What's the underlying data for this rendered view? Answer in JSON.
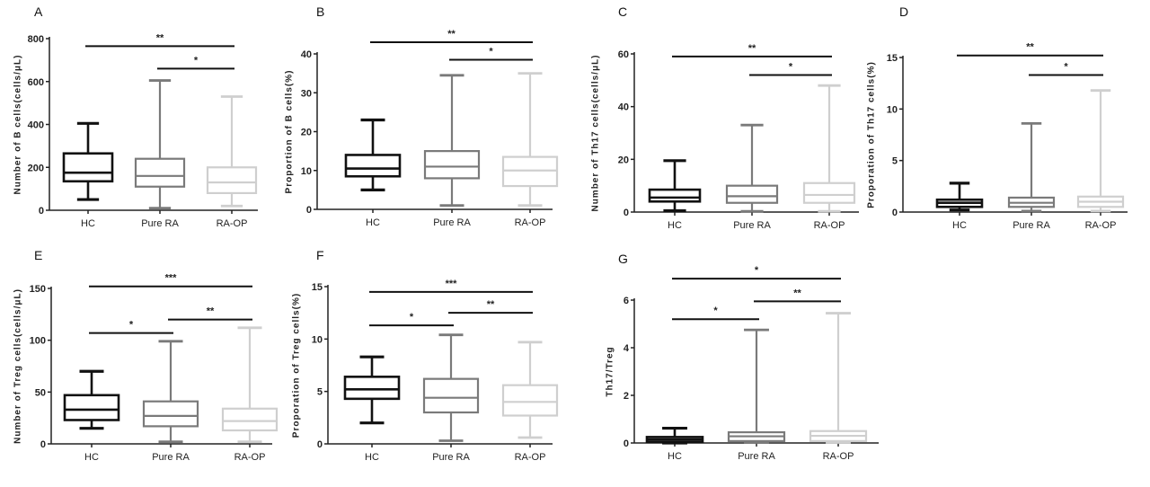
{
  "colors": {
    "HC": "#111111",
    "Pure RA": "#7a7a7a",
    "RA-OP": "#cfcfcf"
  },
  "chart_data": [
    {
      "panel": "A",
      "type": "box",
      "ylabel": "Number of B cells(cells/μL)",
      "categories": [
        "HC",
        "Pure RA",
        "RA-OP"
      ],
      "ylim": [
        0,
        800
      ],
      "yticks": [
        0,
        200,
        400,
        600,
        800
      ],
      "boxes": [
        {
          "min": 50,
          "q1": 135,
          "median": 175,
          "q3": 265,
          "max": 405
        },
        {
          "min": 10,
          "q1": 110,
          "median": 160,
          "q3": 240,
          "max": 605
        },
        {
          "min": 20,
          "q1": 80,
          "median": 130,
          "q3": 200,
          "max": 530
        }
      ],
      "significance": [
        {
          "from": "HC",
          "to": "RA-OP",
          "label": "**",
          "y": 765
        },
        {
          "from": "Pure RA",
          "to": "RA-OP",
          "label": "*",
          "y": 660
        }
      ]
    },
    {
      "panel": "B",
      "type": "box",
      "ylabel": "Proportion of B cells(%)",
      "categories": [
        "HC",
        "Pure RA",
        "RA-OP"
      ],
      "ylim": [
        0,
        40
      ],
      "yticks": [
        0,
        10,
        20,
        30,
        40
      ],
      "boxes": [
        {
          "min": 5,
          "q1": 8.5,
          "median": 10.5,
          "q3": 14,
          "max": 23
        },
        {
          "min": 1,
          "q1": 8,
          "median": 11,
          "q3": 15,
          "max": 34.5
        },
        {
          "min": 1,
          "q1": 6,
          "median": 10,
          "q3": 13.5,
          "max": 35
        }
      ],
      "significance": [
        {
          "from": "HC",
          "to": "RA-OP",
          "label": "**",
          "y": 43
        },
        {
          "from": "Pure RA",
          "to": "RA-OP",
          "label": "*",
          "y": 38.5
        }
      ]
    },
    {
      "panel": "C",
      "type": "box",
      "ylabel": "Number of Th17 cells(cells/μL)",
      "categories": [
        "HC",
        "Pure RA",
        "RA-OP"
      ],
      "ylim": [
        0,
        60
      ],
      "yticks": [
        0,
        20,
        40,
        60
      ],
      "boxes": [
        {
          "min": 0.5,
          "q1": 4,
          "median": 5.5,
          "q3": 8.5,
          "max": 19.5
        },
        {
          "min": 0.3,
          "q1": 3.5,
          "median": 6,
          "q3": 10,
          "max": 33
        },
        {
          "min": 0.3,
          "q1": 3.5,
          "median": 6.5,
          "q3": 11,
          "max": 48
        }
      ],
      "significance": [
        {
          "from": "HC",
          "to": "RA-OP",
          "label": "**",
          "y": 59
        },
        {
          "from": "Pure RA",
          "to": "RA-OP",
          "label": "*",
          "y": 52
        }
      ]
    },
    {
      "panel": "D",
      "type": "box",
      "ylabel": "Proporation of Th17 cells(%)",
      "categories": [
        "HC",
        "Pure RA",
        "RA-OP"
      ],
      "ylim": [
        0,
        15
      ],
      "yticks": [
        0,
        5,
        10,
        15
      ],
      "boxes": [
        {
          "min": 0.2,
          "q1": 0.5,
          "median": 0.9,
          "q3": 1.2,
          "max": 2.8
        },
        {
          "min": 0.1,
          "q1": 0.5,
          "median": 0.9,
          "q3": 1.4,
          "max": 8.6
        },
        {
          "min": 0.1,
          "q1": 0.5,
          "median": 1.0,
          "q3": 1.5,
          "max": 11.8
        }
      ],
      "significance": [
        {
          "from": "HC",
          "to": "RA-OP",
          "label": "**",
          "y": 15.2
        },
        {
          "from": "Pure RA",
          "to": "RA-OP",
          "label": "*",
          "y": 13.3
        }
      ]
    },
    {
      "panel": "E",
      "type": "box",
      "ylabel": "Number of Treg cells(cells/μL)",
      "categories": [
        "HC",
        "Pure RA",
        "RA-OP"
      ],
      "ylim": [
        0,
        150
      ],
      "yticks": [
        0,
        50,
        100,
        150
      ],
      "boxes": [
        {
          "min": 15,
          "q1": 23,
          "median": 33,
          "q3": 47,
          "max": 70
        },
        {
          "min": 2,
          "q1": 17,
          "median": 27,
          "q3": 41,
          "max": 99
        },
        {
          "min": 2,
          "q1": 13,
          "median": 22,
          "q3": 34,
          "max": 112
        }
      ],
      "significance": [
        {
          "from": "HC",
          "to": "RA-OP",
          "label": "***",
          "y": 152
        },
        {
          "from": "Pure RA",
          "to": "RA-OP",
          "label": "**",
          "y": 120
        },
        {
          "from": "HC",
          "to": "Pure RA",
          "label": "*",
          "y": 107
        }
      ]
    },
    {
      "panel": "F",
      "type": "box",
      "ylabel": "Proporation of Treg cells(%)",
      "categories": [
        "HC",
        "Pure RA",
        "RA-OP"
      ],
      "ylim": [
        0,
        15
      ],
      "yticks": [
        0,
        5,
        10,
        15
      ],
      "boxes": [
        {
          "min": 2,
          "q1": 4.3,
          "median": 5.2,
          "q3": 6.4,
          "max": 8.3
        },
        {
          "min": 0.3,
          "q1": 3,
          "median": 4.4,
          "q3": 6.2,
          "max": 10.4
        },
        {
          "min": 0.6,
          "q1": 2.7,
          "median": 4,
          "q3": 5.6,
          "max": 9.7
        }
      ],
      "significance": [
        {
          "from": "HC",
          "to": "RA-OP",
          "label": "***",
          "y": 14.5
        },
        {
          "from": "Pure RA",
          "to": "RA-OP",
          "label": "**",
          "y": 12.5
        },
        {
          "from": "HC",
          "to": "Pure RA",
          "label": "*",
          "y": 11.3
        }
      ]
    },
    {
      "panel": "G",
      "type": "box",
      "ylabel": "Th17/Treg",
      "categories": [
        "HC",
        "Pure RA",
        "RA-OP"
      ],
      "ylim": [
        0,
        6
      ],
      "yticks": [
        0,
        2,
        4,
        6
      ],
      "boxes": [
        {
          "min": 0,
          "q1": 0.05,
          "median": 0.15,
          "q3": 0.25,
          "max": 0.62
        },
        {
          "min": 0.02,
          "q1": 0.08,
          "median": 0.28,
          "q3": 0.45,
          "max": 4.75
        },
        {
          "min": 0.02,
          "q1": 0.08,
          "median": 0.3,
          "q3": 0.5,
          "max": 5.45
        }
      ],
      "significance": [
        {
          "from": "HC",
          "to": "RA-OP",
          "label": "*",
          "y": 6.9
        },
        {
          "from": "Pure RA",
          "to": "RA-OP",
          "label": "**",
          "y": 5.95
        },
        {
          "from": "HC",
          "to": "Pure RA",
          "label": "*",
          "y": 5.2
        }
      ]
    }
  ]
}
